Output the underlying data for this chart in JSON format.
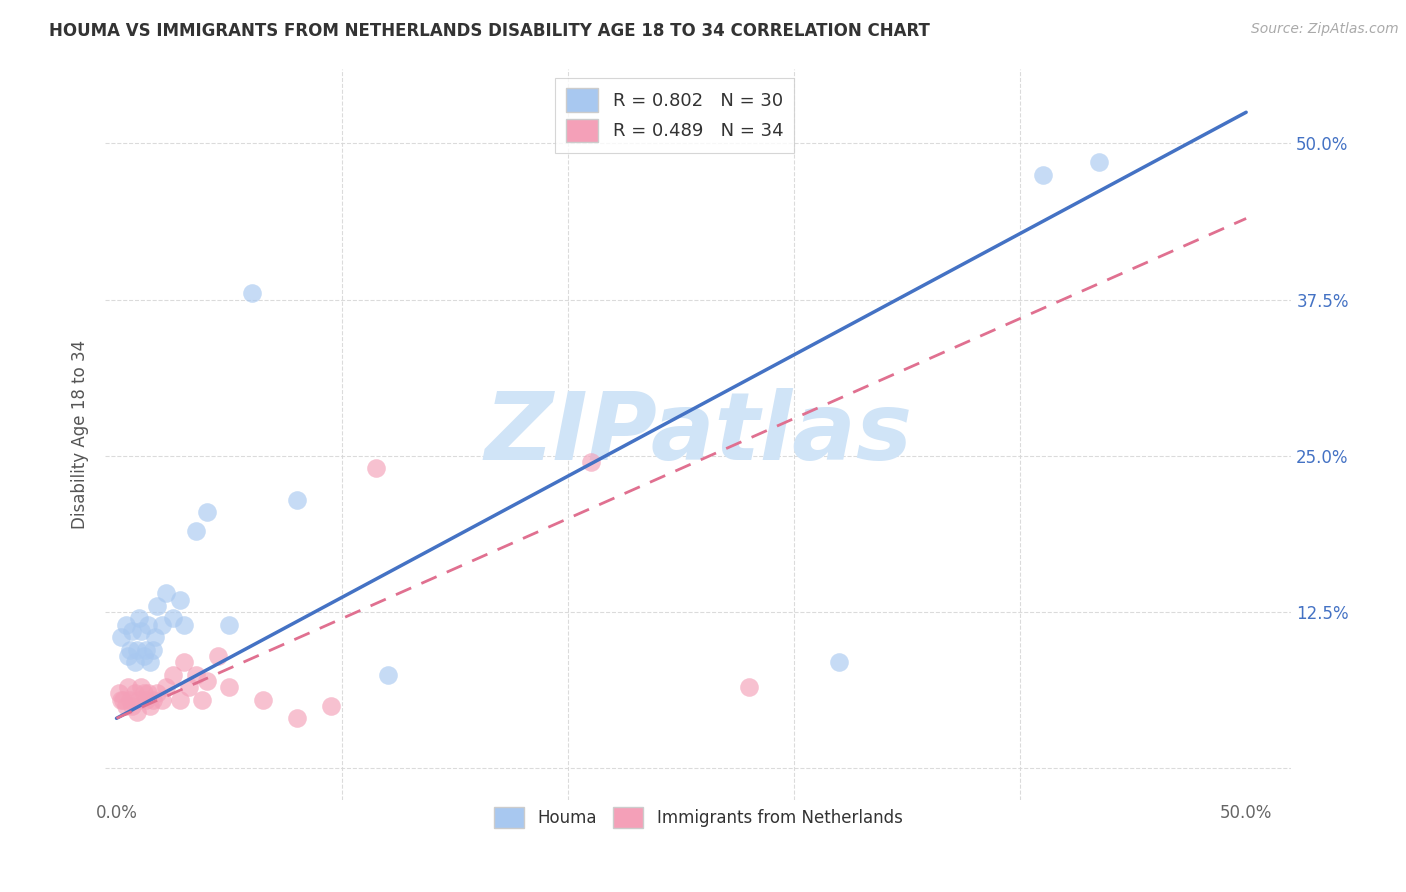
{
  "title": "HOUMA VS IMMIGRANTS FROM NETHERLANDS DISABILITY AGE 18 TO 34 CORRELATION CHART",
  "source": "Source: ZipAtlas.com",
  "ylabel": "Disability Age 18 to 34",
  "xlabel_legend_1": "Houma",
  "xlabel_legend_2": "Immigrants from Netherlands",
  "watermark": "ZIPatlas",
  "xlim": [
    -0.005,
    0.52
  ],
  "ylim": [
    -0.025,
    0.56
  ],
  "R1": 0.802,
  "N1": 30,
  "R2": 0.489,
  "N2": 34,
  "color_blue": "#a8c8f0",
  "color_pink": "#f4a0b8",
  "color_line_blue": "#4472c4",
  "color_line_pink": "#e07090",
  "color_grid": "#d8d8d8",
  "color_title": "#333333",
  "color_source": "#aaaaaa",
  "color_watermark": "#d0e4f7",
  "color_right_axis": "#4472c4",
  "blue_line_x": [
    0.0,
    0.5
  ],
  "blue_line_y": [
    0.04,
    0.525
  ],
  "pink_line_x": [
    0.0,
    0.5
  ],
  "pink_line_y": [
    0.04,
    0.44
  ],
  "houma_x": [
    0.002,
    0.004,
    0.005,
    0.006,
    0.007,
    0.008,
    0.009,
    0.01,
    0.011,
    0.012,
    0.013,
    0.014,
    0.015,
    0.016,
    0.017,
    0.018,
    0.02,
    0.022,
    0.025,
    0.028,
    0.03,
    0.035,
    0.04,
    0.05,
    0.06,
    0.08,
    0.12,
    0.32,
    0.41,
    0.435
  ],
  "houma_y": [
    0.105,
    0.115,
    0.09,
    0.095,
    0.11,
    0.085,
    0.095,
    0.12,
    0.11,
    0.09,
    0.095,
    0.115,
    0.085,
    0.095,
    0.105,
    0.13,
    0.115,
    0.14,
    0.12,
    0.135,
    0.115,
    0.19,
    0.205,
    0.115,
    0.38,
    0.215,
    0.075,
    0.085,
    0.475,
    0.485
  ],
  "netherlands_x": [
    0.001,
    0.002,
    0.003,
    0.004,
    0.005,
    0.006,
    0.007,
    0.008,
    0.009,
    0.01,
    0.011,
    0.012,
    0.013,
    0.014,
    0.015,
    0.016,
    0.018,
    0.02,
    0.022,
    0.025,
    0.028,
    0.03,
    0.032,
    0.035,
    0.038,
    0.04,
    0.045,
    0.05,
    0.065,
    0.08,
    0.095,
    0.115,
    0.21,
    0.28
  ],
  "netherlands_y": [
    0.06,
    0.055,
    0.055,
    0.05,
    0.065,
    0.055,
    0.05,
    0.06,
    0.045,
    0.055,
    0.065,
    0.06,
    0.055,
    0.06,
    0.05,
    0.055,
    0.06,
    0.055,
    0.065,
    0.075,
    0.055,
    0.085,
    0.065,
    0.075,
    0.055,
    0.07,
    0.09,
    0.065,
    0.055,
    0.04,
    0.05,
    0.24,
    0.245,
    0.065
  ]
}
